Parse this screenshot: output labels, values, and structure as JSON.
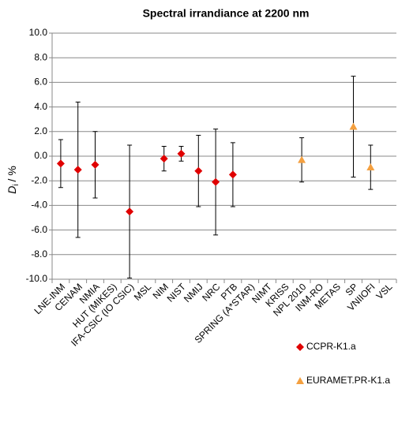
{
  "chart_data": {
    "type": "errorbar",
    "title": "Spectral irrandiance at 2200 nm",
    "y_label": [
      "D",
      "i",
      "/ %"
    ],
    "categories": [
      "LNE-INM",
      "CENAM",
      "NMIA",
      "HUT (MIKES)",
      "IFA-CSIC (IO CSIC)",
      "MSL",
      "NIM",
      "NIST",
      "NMIJ",
      "NRC",
      "PTB",
      "SPRING (A*STAR)",
      "NIMT",
      "KRISS",
      "NPL 2010",
      "INM-RO",
      "METAS",
      "SP",
      "VNIIOFI",
      "VSL"
    ],
    "series": [
      {
        "name": "CCPR-K1.a",
        "color": "#e00000",
        "marker": "diamond",
        "values": [
          -0.6,
          -1.1,
          -0.7,
          null,
          -4.5,
          null,
          -0.2,
          0.2,
          -1.2,
          -2.1,
          -1.5,
          null,
          null,
          null,
          null,
          null,
          null,
          null,
          null,
          null
        ],
        "errors": [
          1.95,
          5.5,
          2.7,
          null,
          5.4,
          null,
          1.0,
          0.6,
          2.9,
          4.3,
          2.6,
          null,
          null,
          null,
          null,
          null,
          null,
          null,
          null,
          null
        ]
      },
      {
        "name": "EURAMET.PR-K1.a",
        "color": "#f4a040",
        "marker": "triangle",
        "values": [
          null,
          null,
          null,
          null,
          null,
          null,
          null,
          null,
          null,
          null,
          null,
          null,
          null,
          null,
          -0.3,
          null,
          null,
          2.4,
          -0.9,
          null
        ],
        "errors": [
          null,
          null,
          null,
          null,
          null,
          null,
          null,
          null,
          null,
          null,
          null,
          null,
          null,
          null,
          1.8,
          null,
          null,
          4.1,
          1.8,
          null
        ]
      }
    ],
    "ylim": [
      -10,
      10
    ],
    "yticks": [
      {
        "value": -10,
        "label": "-10.0"
      },
      {
        "value": -8,
        "label": "-8.0"
      },
      {
        "value": -6,
        "label": "-6.0"
      },
      {
        "value": -4,
        "label": "-4.0"
      },
      {
        "value": -2,
        "label": "-2.0"
      },
      {
        "value": 0,
        "label": "0.0"
      },
      {
        "value": 2,
        "label": "2.0"
      },
      {
        "value": 4,
        "label": "4.0"
      },
      {
        "value": 6,
        "label": "6.0"
      },
      {
        "value": 8,
        "label": "8.0"
      },
      {
        "value": 10,
        "label": "10.0"
      }
    ],
    "grid": true,
    "legend": "lower right"
  }
}
